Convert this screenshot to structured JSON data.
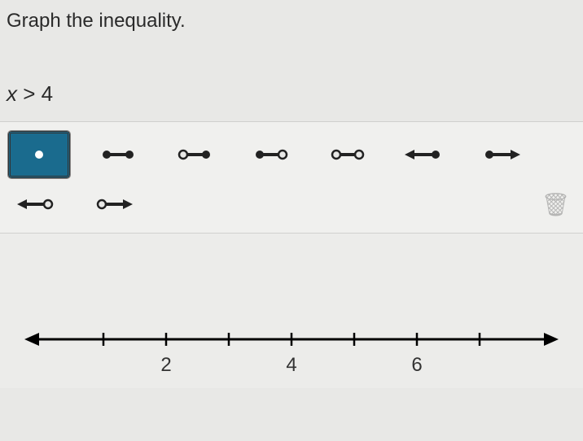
{
  "instruction": "Graph the inequality.",
  "inequality": {
    "variable": "x",
    "rest": " > 4"
  },
  "tools": {
    "selected_index": 0,
    "point_color_selected": "#ffffff",
    "point_bg_selected": "#1a6b8e",
    "stroke": "#222222",
    "types": [
      "point",
      "closed-closed",
      "open-closed",
      "closed-open",
      "open-open",
      "left-arrow-closed",
      "closed-right-arrow",
      "left-arrow-open",
      "open-right-arrow"
    ]
  },
  "trash_glyph": "🗑",
  "numberline": {
    "min": 0,
    "max": 8,
    "tick_step": 1,
    "labeled_ticks": [
      2,
      4,
      6
    ],
    "axis_color": "#000000",
    "arrow_size": 14
  }
}
